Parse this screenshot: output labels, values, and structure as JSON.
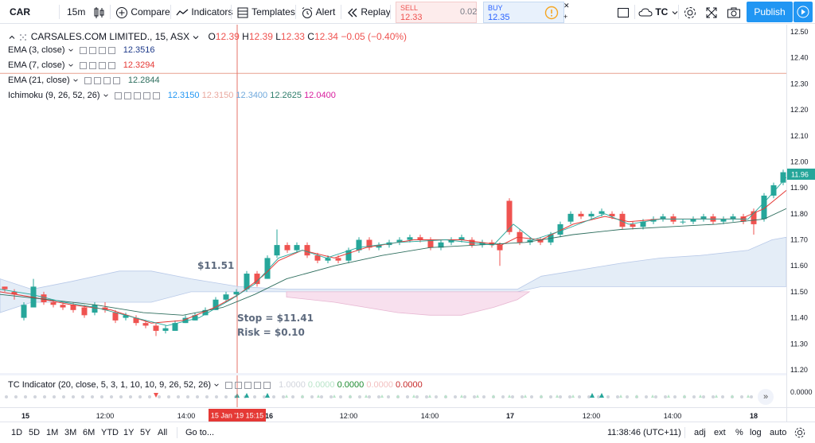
{
  "toolbar": {
    "symbol": "CAR",
    "interval": "15m",
    "compare_label": "Compare",
    "indicators_label": "Indicators",
    "templates_label": "Templates",
    "alert_label": "Alert",
    "replay_label": "Replay",
    "sell_label": "SELL",
    "sell_price": "12.33",
    "spread": "0.02",
    "buy_label": "BUY",
    "buy_price": "12.35",
    "layout_name": "TC",
    "publish_label": "Publish"
  },
  "legend": {
    "title": "CARSALES.COM LIMITED., 15, ASX",
    "o_label": "O",
    "o_value": "12.39",
    "h_label": "H",
    "h_value": "12.39",
    "l_label": "L",
    "l_value": "12.33",
    "c_label": "C",
    "c_value": "12.34",
    "change": "−0.05 (−0.40%)",
    "ema3_label": "EMA (3, close)",
    "ema3_value": "12.3516",
    "ema7_label": "EMA (7, close)",
    "ema7_value": "12.3294",
    "ema21_label": "EMA (21, close)",
    "ema21_value": "12.2844",
    "ichimoku_label": "Ichimoku (9, 26, 52, 26)",
    "ichimoku_values": [
      "12.3150",
      "12.3150",
      "12.3400",
      "12.2625",
      "12.0400"
    ],
    "tc_label": "TC Indicator (20, close, 5, 3, 1, 10, 10, 9, 26, 52, 26)",
    "tc_values": [
      "1.0000",
      "0.0000",
      "0.0000",
      "0.0000",
      "0.0000"
    ]
  },
  "annotations": {
    "entry": "$11.51",
    "stop": "Stop = $11.41",
    "risk": "Risk = $0.10"
  },
  "price_axis": {
    "ticks": [
      "12.50",
      "12.40",
      "12.30",
      "12.20",
      "12.10",
      "12.00",
      "11.90",
      "11.80",
      "11.70",
      "11.60",
      "11.50",
      "11.40",
      "11.30",
      "11.20"
    ],
    "current_price": "11.96",
    "indicator_tick": "0.0000"
  },
  "time_axis": {
    "ticks": [
      "15",
      "12:00",
      "14:00",
      "16",
      "12:00",
      "14:00",
      "17",
      "12:00",
      "14:00",
      "18"
    ],
    "crosshair_label": "15 Jan '19   15:15"
  },
  "bottom_bar": {
    "ranges": [
      "1D",
      "5D",
      "1M",
      "3M",
      "6M",
      "YTD",
      "1Y",
      "5Y",
      "All"
    ],
    "goto_label": "Go to...",
    "clock": "11:38:46 (UTC+11)",
    "adj": "adj",
    "ext": "ext",
    "pct": "%",
    "log": "log",
    "auto": "auto"
  },
  "colors": {
    "up": "#26a69a",
    "down": "#ef5350",
    "ema3": "#1e3a8a",
    "ema7": "#e53935",
    "ema21": "#2e6e5e",
    "publish": "#2196f3",
    "crosshair": "#e57368"
  }
}
